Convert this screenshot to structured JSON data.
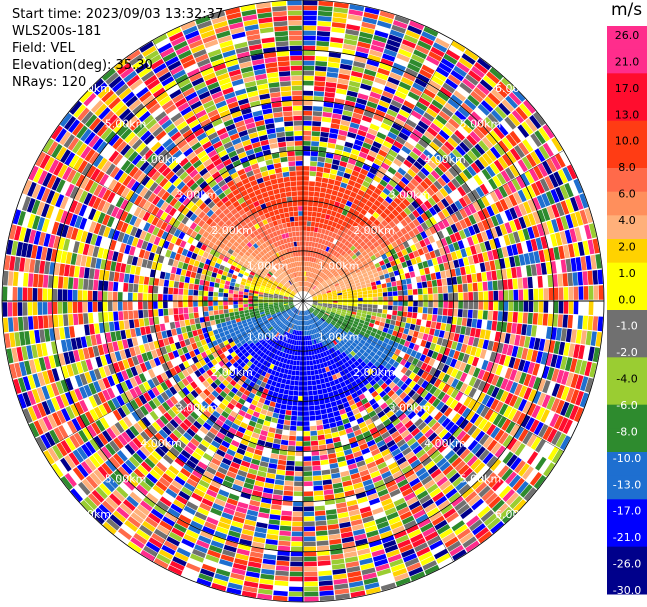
{
  "info": {
    "start_time": "Start time: 2023/09/03 13:32:37",
    "instrument": "WLS200s-181",
    "field": "Field: VEL",
    "elevation": "Elevation(deg): 35.30",
    "nrays": "NRays: 120"
  },
  "colorbar": {
    "unit": "m/s",
    "ticks": [
      "26.0",
      "21.0",
      "17.0",
      "13.0",
      "10.0",
      "8.0",
      "6.0",
      "4.0",
      "2.0",
      "1.0",
      "0.0",
      "-1.0",
      "-2.0",
      "-4.0",
      "-6.0",
      "-8.0",
      "-10.0",
      "-13.0",
      "-17.0",
      "-21.0",
      "-26.0",
      "-30.0"
    ],
    "colors": [
      "#ff2d8c",
      "#ff2d8c",
      "#ff0d2e",
      "#ff0d2e",
      "#ff3c14",
      "#ff3c14",
      "#ff6a4a",
      "#ff8f5c",
      "#ffb07a",
      "#ffd200",
      "#ffff00",
      "#ffff00",
      "#707070",
      "#707070",
      "#9acd32",
      "#9acd32",
      "#2e8b2e",
      "#2e8b2e",
      "#1e6fd0",
      "#1e6fd0",
      "#0000ff",
      "#0000ff",
      "#00008b",
      "#00008b"
    ]
  },
  "chart_data": {
    "type": "ppi",
    "title": "",
    "range_rings_km": [
      1.0,
      2.0,
      3.0,
      4.0,
      5.0,
      6.0
    ],
    "ring_labels": [
      "1.00km",
      "2.00km",
      "3.00km",
      "4.00km",
      "5.00km",
      "6.00km"
    ],
    "nrays": 120,
    "gates": 60,
    "max_range_km": 6.0,
    "clean_range_by_sector": [
      {
        "azimuth_from": 0,
        "azimuth_to": 60,
        "km": 2.6
      },
      {
        "azimuth_from": 60,
        "azimuth_to": 110,
        "km": 1.5
      },
      {
        "azimuth_from": 110,
        "azimuth_to": 200,
        "km": 2.3
      },
      {
        "azimuth_from": 200,
        "azimuth_to": 260,
        "km": 1.8
      },
      {
        "azimuth_from": 260,
        "azimuth_to": 300,
        "km": 1.0
      },
      {
        "azimuth_from": 300,
        "azimuth_to": 360,
        "km": 2.6
      }
    ]
  }
}
